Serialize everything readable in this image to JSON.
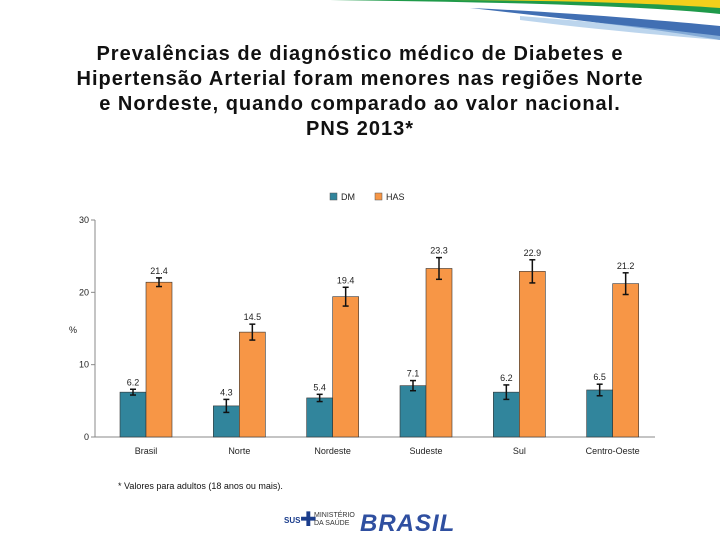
{
  "title_lines": [
    "Prevalências de diagnóstico médico de Diabetes e",
    "Hipertensão Arterial foram menores nas regiões Norte",
    "e Nordeste, quando comparado ao valor nacional.",
    "PNS 2013*"
  ],
  "footnote": "* Valores para adultos (18 anos ou mais).",
  "logos": {
    "sus": "SUS",
    "ministry": "MINISTÉRIO DA SAÚDE",
    "country": "BRASIL"
  },
  "colors": {
    "dm": "#31859c",
    "has": "#f79646",
    "band_green": "#1f9a4a",
    "band_yellow": "#f2cf1c",
    "band_blue": "#2c5fab"
  },
  "chart_data": {
    "type": "bar",
    "title": "Prevalências de diagnóstico médico de Diabetes e Hipertensão Arterial foram menores nas regiões Norte e Nordeste, quando comparado ao valor nacional. PNS 2013*",
    "ylabel": "%",
    "xlabel": "",
    "ylim": [
      0,
      30
    ],
    "yticks": [
      0,
      10,
      20,
      30
    ],
    "legend_position": "top-center",
    "categories": [
      "Brasil",
      "Norte",
      "Nordeste",
      "Sudeste",
      "Sul",
      "Centro-Oeste"
    ],
    "series": [
      {
        "name": "DM",
        "color": "#31859c",
        "values": [
          6.2,
          4.3,
          5.4,
          7.1,
          6.2,
          6.5
        ],
        "errors": [
          0.4,
          0.9,
          0.5,
          0.7,
          1.0,
          0.8
        ]
      },
      {
        "name": "HAS",
        "color": "#f79646",
        "values": [
          21.4,
          14.5,
          19.4,
          23.3,
          22.9,
          21.2
        ],
        "errors": [
          0.6,
          1.1,
          1.3,
          1.5,
          1.6,
          1.5
        ]
      }
    ],
    "data_labels": [
      [
        "6.2",
        "4.3",
        "5.4",
        "7.1",
        "6.2",
        "6.5"
      ],
      [
        "21.4",
        "14.5",
        "19.4",
        "23.3",
        "22.9",
        "21.2"
      ]
    ]
  }
}
